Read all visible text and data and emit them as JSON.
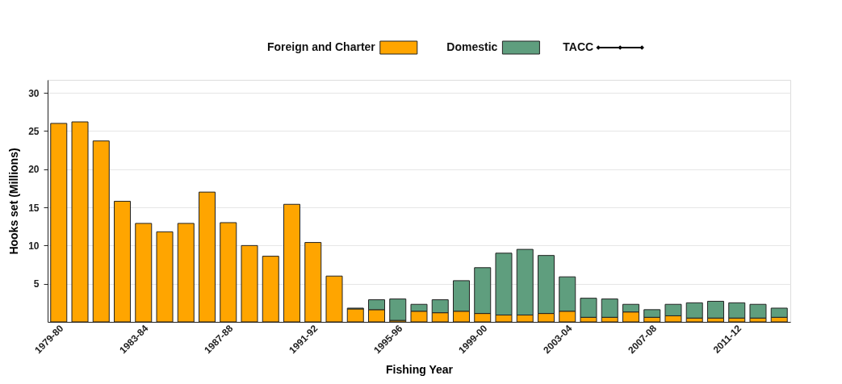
{
  "chart_data": {
    "type": "bar",
    "stacked": true,
    "xlabel": "Fishing Year",
    "ylabel": "Hooks set (Millions)",
    "categories": [
      "1979-80",
      null,
      null,
      null,
      "1983-84",
      null,
      null,
      null,
      "1987-88",
      null,
      null,
      null,
      "1991-92",
      null,
      null,
      null,
      "1995-96",
      null,
      null,
      null,
      "1999-00",
      null,
      null,
      null,
      "2003-04",
      null,
      null,
      null,
      "2007-08",
      null,
      null,
      null,
      "2011-12",
      null,
      null
    ],
    "series": [
      {
        "name": "Foreign and Charter",
        "color": "#ffa500",
        "values": [
          26.0,
          26.2,
          23.7,
          15.8,
          12.9,
          11.8,
          12.9,
          17.0,
          13.0,
          10.0,
          8.6,
          15.4,
          10.4,
          6.0,
          1.7,
          1.6,
          0.2,
          1.4,
          1.2,
          1.4,
          1.1,
          0.9,
          0.9,
          1.1,
          1.4,
          0.6,
          0.6,
          1.3,
          0.6,
          0.8,
          0.5,
          0.5,
          0.5,
          0.5,
          0.6
        ]
      },
      {
        "name": "Domestic",
        "color": "#5f9e7e",
        "values": [
          null,
          null,
          null,
          null,
          null,
          null,
          null,
          null,
          null,
          null,
          null,
          null,
          null,
          null,
          0.1,
          1.3,
          2.8,
          0.9,
          1.7,
          4.0,
          6.0,
          8.1,
          8.6,
          7.6,
          4.5,
          2.5,
          2.4,
          1.0,
          1.0,
          1.5,
          2.0,
          2.2,
          2.0,
          1.8,
          1.2
        ]
      },
      {
        "name": "TACC",
        "color": "#000000",
        "type": "line",
        "marker": "diamond",
        "values": [
          null,
          null,
          null,
          null,
          null,
          null,
          null,
          null,
          null,
          null,
          null,
          null,
          null,
          null,
          null,
          null,
          null,
          null,
          null,
          null,
          null,
          null,
          null,
          null,
          null,
          null,
          null,
          null,
          null,
          null,
          null,
          null,
          null,
          null,
          null
        ]
      }
    ],
    "ylim": [
      0,
      31.7
    ],
    "yticks": [
      5,
      10,
      15,
      20,
      25,
      30
    ],
    "grid": "y",
    "legend": "top"
  }
}
